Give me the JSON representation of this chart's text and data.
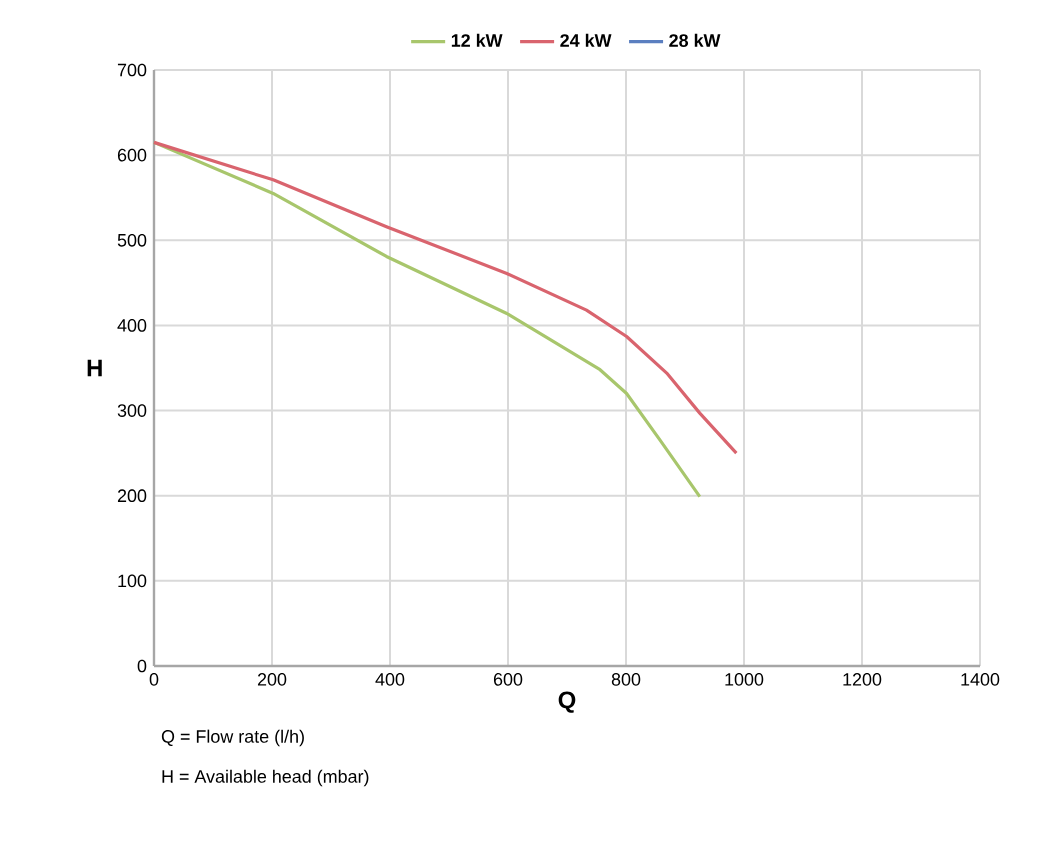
{
  "chart_data": {
    "type": "line",
    "xlabel": "Q",
    "ylabel": "H",
    "xlim": [
      0,
      1400
    ],
    "ylim": [
      0,
      700
    ],
    "xticks": [
      0,
      200,
      400,
      600,
      800,
      1000,
      1200,
      1400
    ],
    "yticks": [
      0,
      100,
      200,
      300,
      400,
      500,
      600,
      700
    ],
    "grid": true,
    "legend": "top",
    "marker": "none",
    "line_style": "solid",
    "series": [
      {
        "name": "12 kW",
        "color": "#a8c66c",
        "x": [
          0,
          202,
          394,
          598,
          756,
          801,
          858,
          925
        ],
        "values": [
          615,
          555,
          481,
          414,
          348,
          320,
          265,
          199
        ]
      },
      {
        "name": "24 kW",
        "color": "#d9646e",
        "x": [
          0,
          202,
          394,
          598,
          733,
          801,
          869,
          925,
          987
        ],
        "values": [
          615,
          571,
          516,
          461,
          418,
          387,
          344,
          297,
          250
        ]
      },
      {
        "name": "28 kW",
        "color": "#5b7fc0",
        "values": [
          null
        ]
      }
    ],
    "annotations": [
      "Q = Flow rate (l/h)",
      "H = Available head (mbar)"
    ]
  }
}
